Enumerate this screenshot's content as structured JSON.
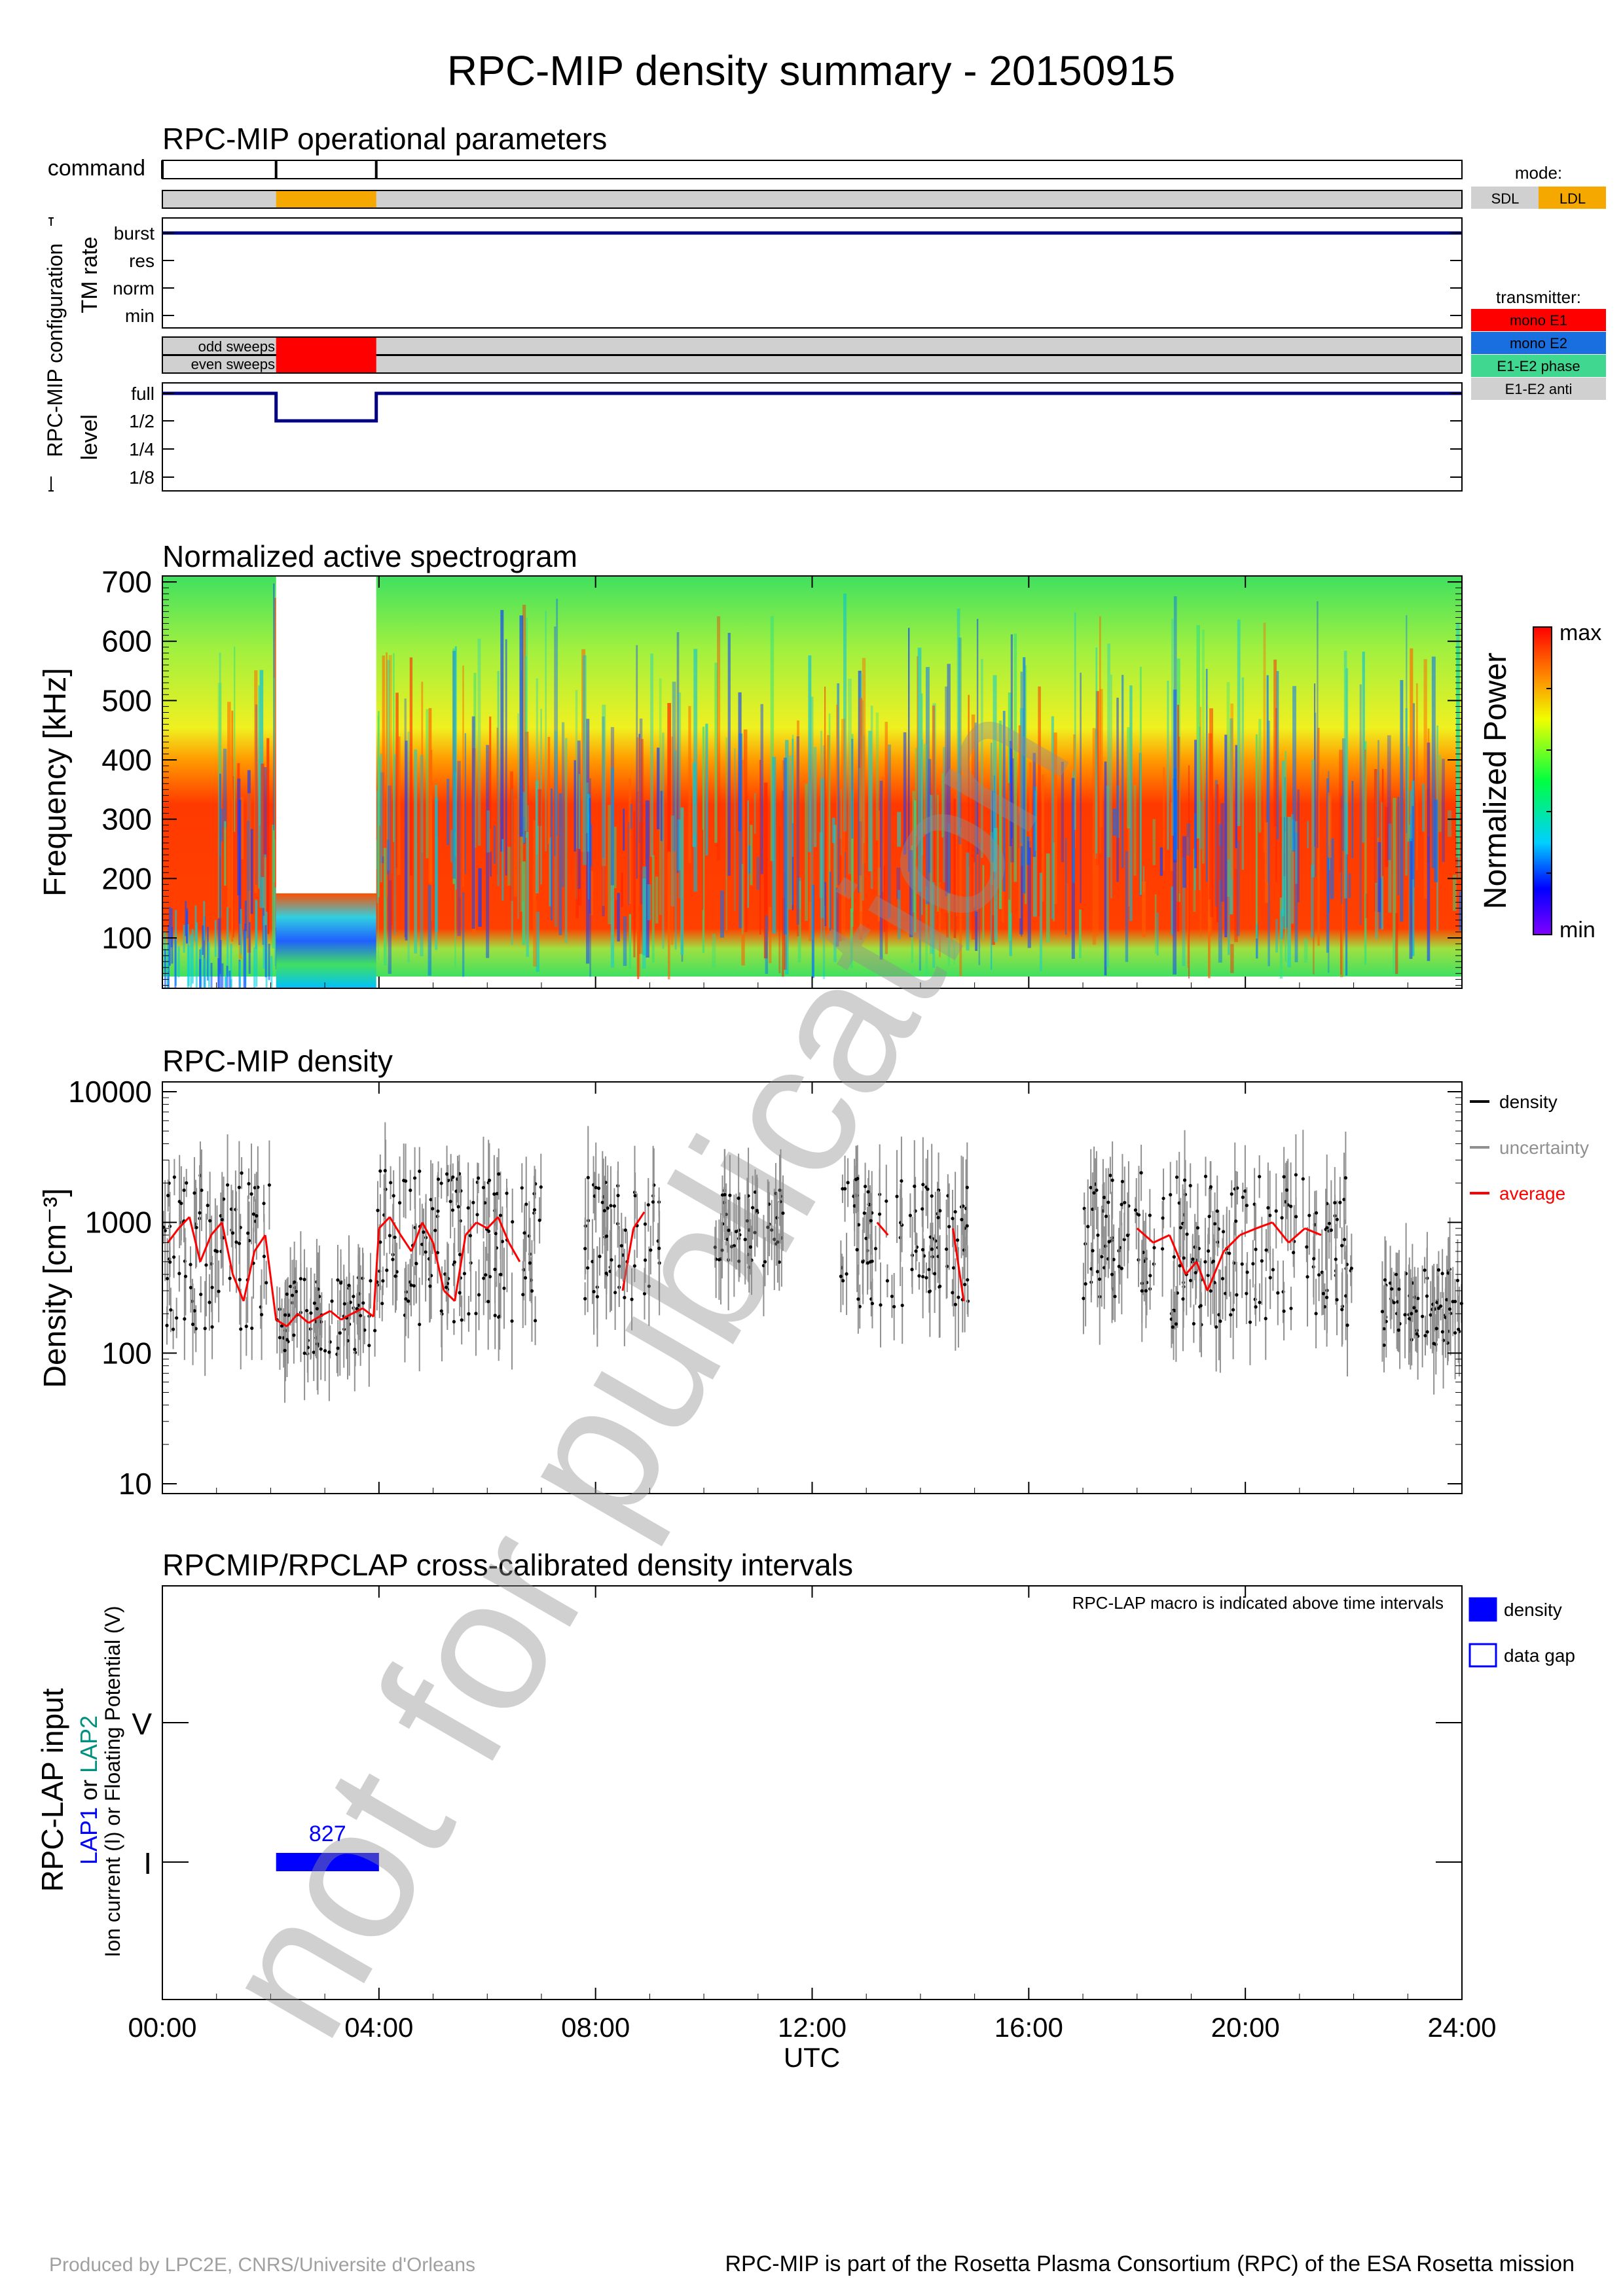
{
  "title": "RPC-MIP density summary - 20150915",
  "watermark": "not for publication",
  "footer": {
    "left": "Produced by LPC2E, CNRS/Universite d'Orleans",
    "right": "RPC-MIP is part of the Rosetta Plasma Consortium (RPC) of the ESA Rosetta mission"
  },
  "colors": {
    "navy": "#000080",
    "grey_bar": "#d0d0d0",
    "orange": "#f5a800",
    "red": "#ff0000",
    "blue": "#0000ff",
    "mono_e2": "#1a6fe0",
    "e1e2_phase": "#40d890",
    "e1e2_anti": "#d0d0d0",
    "cyan_green": "#009080"
  },
  "ops": {
    "title": "RPC-MIP operational parameters",
    "command_label": "command",
    "group_label": "RPC-MIP configuration",
    "tm_label": "TM rate",
    "tm_ticks": [
      "burst",
      "res",
      "norm",
      "min"
    ],
    "sweep_labels": [
      "odd sweeps",
      "even sweeps"
    ],
    "level_label": "level",
    "level_ticks": [
      "full",
      "1/2",
      "1/4",
      "1/8"
    ],
    "mode_legend_title": "mode:",
    "mode_legend": [
      {
        "label": "SDL",
        "color": "#d0d0d0"
      },
      {
        "label": "LDL",
        "color": "#f5a800"
      }
    ],
    "tx_legend_title": "transmitter:",
    "tx_legend": [
      {
        "label": "mono E1",
        "color": "#ff0000"
      },
      {
        "label": "mono E2",
        "color": "#1a6fe0"
      },
      {
        "label": "E1-E2 phase",
        "color": "#40d890"
      },
      {
        "label": "E1-E2 anti",
        "color": "#d0d0d0"
      }
    ]
  },
  "chart_data": [
    {
      "type": "step",
      "title": "RPC-MIP operational parameters",
      "x_unit": "hours UTC",
      "xlim": [
        0,
        24
      ],
      "command_times": [
        0,
        2.1,
        3.95
      ],
      "mode": [
        {
          "start": 0,
          "end": 2.1,
          "value": "SDL"
        },
        {
          "start": 2.1,
          "end": 3.95,
          "value": "LDL"
        },
        {
          "start": 3.95,
          "end": 24,
          "value": "SDL"
        }
      ],
      "tm_rate": [
        {
          "start": 0,
          "end": 24,
          "value": "burst"
        }
      ],
      "transmitter": [
        {
          "start": 0,
          "end": 2.1,
          "value": "E1-E2 anti"
        },
        {
          "start": 2.1,
          "end": 3.95,
          "value": "mono E1"
        },
        {
          "start": 3.95,
          "end": 24,
          "value": "E1-E2 anti"
        }
      ],
      "level": [
        {
          "start": 0,
          "end": 2.1,
          "value": "full"
        },
        {
          "start": 2.1,
          "end": 3.95,
          "value": "1/2"
        },
        {
          "start": 3.95,
          "end": 24,
          "value": "full"
        }
      ]
    },
    {
      "type": "heatmap",
      "title": "Normalized active spectrogram",
      "ylabel": "Frequency [kHz]",
      "yticks": [
        100,
        200,
        300,
        400,
        500,
        600,
        700
      ],
      "ylim": [
        15,
        710
      ],
      "xlim": [
        0,
        24
      ],
      "colorbar_label": "Normalized Power",
      "colorbar_ticks": [
        "max",
        "min"
      ],
      "data_gap": {
        "start": 2.1,
        "end": 3.95,
        "above_khz": 175
      },
      "band_profile_khz": [
        {
          "from": 30,
          "to": 300,
          "level": "high"
        },
        {
          "from": 300,
          "to": 450,
          "level": "medium"
        },
        {
          "from": 450,
          "to": 710,
          "level": "low"
        }
      ]
    },
    {
      "type": "scatter",
      "title": "RPC-MIP density",
      "ylabel": "Density [cm⁻³]",
      "yscale": "log",
      "ylim": [
        10,
        10000
      ],
      "yticks": [
        "10",
        "100",
        "1000",
        "10000"
      ],
      "xlim": [
        0,
        24
      ],
      "legend": [
        {
          "label": "density",
          "color": "#000000"
        },
        {
          "label": "uncertainty",
          "color": "#909090"
        },
        {
          "label": "average",
          "color": "#ff0000"
        }
      ],
      "series": [
        {
          "name": "average",
          "x": [
            0.1,
            0.3,
            0.5,
            0.7,
            0.9,
            1.1,
            1.3,
            1.5,
            1.7,
            1.9,
            2.1,
            2.3,
            2.5,
            2.7,
            2.9,
            3.1,
            3.3,
            3.5,
            3.7,
            3.9,
            4.0,
            4.2,
            4.4,
            4.6,
            4.8,
            5.0,
            5.2,
            5.4,
            5.6,
            5.8,
            6.0,
            6.2,
            6.4,
            6.6,
            8.5,
            8.7,
            8.9,
            13.2,
            13.4,
            14.6,
            14.8,
            18.0,
            18.3,
            18.6,
            18.9,
            19.1,
            19.3,
            19.6,
            19.9,
            20.2,
            20.5,
            20.8,
            21.1,
            21.4,
            21.8
          ],
          "y": [
            700,
            900,
            1100,
            500,
            800,
            1000,
            400,
            250,
            600,
            800,
            180,
            160,
            200,
            170,
            190,
            210,
            180,
            200,
            220,
            190,
            900,
            1100,
            800,
            600,
            1000,
            700,
            300,
            250,
            800,
            1000,
            900,
            1100,
            700,
            500,
            300,
            900,
            1200,
            1000,
            800,
            900,
            250,
            900,
            700,
            800,
            400,
            500,
            300,
            600,
            800,
            900,
            1000,
            700,
            900,
            800,
            1400
          ]
        },
        {
          "name": "density",
          "clusters": [
            {
              "start": 0.0,
              "end": 2.0,
              "center": 600,
              "spread": 0.6
            },
            {
              "start": 2.1,
              "end": 3.95,
              "center": 190,
              "spread": 0.3
            },
            {
              "start": 3.95,
              "end": 7.0,
              "center": 650,
              "spread": 0.6
            },
            {
              "start": 7.8,
              "end": 9.2,
              "center": 700,
              "spread": 0.5
            },
            {
              "start": 10.2,
              "end": 11.5,
              "center": 900,
              "spread": 0.3
            },
            {
              "start": 12.5,
              "end": 14.9,
              "center": 700,
              "spread": 0.5
            },
            {
              "start": 17.0,
              "end": 18.5,
              "center": 800,
              "spread": 0.5
            },
            {
              "start": 18.6,
              "end": 22.0,
              "center": 600,
              "spread": 0.6
            },
            {
              "start": 22.5,
              "end": 24.0,
              "center": 220,
              "spread": 0.3
            }
          ]
        }
      ]
    },
    {
      "type": "timeline",
      "title": "RPCMIP/RPCLAP cross-calibrated density intervals",
      "ylabel_parts": [
        "RPC-LAP input",
        "LAP1",
        " or ",
        "LAP2",
        "Ion current (I) or Floating Potential (V)"
      ],
      "yticks": [
        "V",
        "I"
      ],
      "note": "RPC-LAP macro is indicated above time intervals",
      "legend": [
        {
          "label": "density",
          "style": "filled"
        },
        {
          "label": "data gap",
          "style": "outline"
        }
      ],
      "intervals": [
        {
          "start": 2.1,
          "end": 4.0,
          "row": "I",
          "macro": "827",
          "kind": "density"
        }
      ],
      "xlabel": "UTC",
      "xticks": [
        "00:00",
        "04:00",
        "08:00",
        "12:00",
        "16:00",
        "20:00",
        "24:00"
      ]
    }
  ]
}
